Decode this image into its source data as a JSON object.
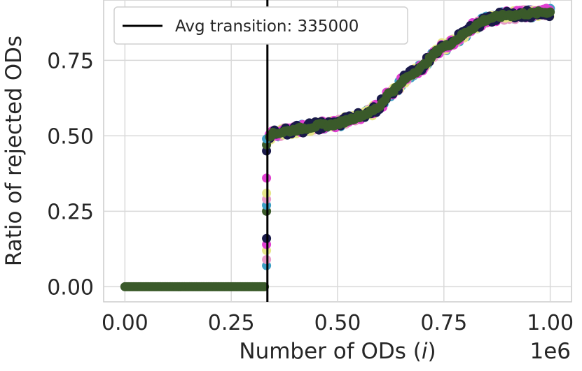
{
  "chart_data": {
    "type": "scatter",
    "xlabel": "Number of ODs (",
    "xlabel_var": "i",
    "xlabel_close": ")",
    "x_multiplier": "1e6",
    "ylabel": "Ratio of rejected ODs",
    "xlim": [
      -50000,
      1050000
    ],
    "ylim": [
      -0.05,
      0.95
    ],
    "x_ticks": [
      0,
      250000,
      500000,
      750000,
      1000000
    ],
    "x_tick_labels": [
      "0.00",
      "0.25",
      "0.50",
      "0.75",
      "1.00"
    ],
    "y_ticks": [
      0.0,
      0.25,
      0.5,
      0.75
    ],
    "y_tick_labels": [
      "0.00",
      "0.25",
      "0.50",
      "0.75"
    ],
    "grid": true,
    "legend_position": "top-left",
    "vline": {
      "x": 335000,
      "label": "Avg transition: 335000",
      "color": "#000000"
    },
    "series_colors": [
      "#3d9ec4",
      "#e89ac8",
      "#e6e68a",
      "#e040d0",
      "#1a1a4a",
      "#3a5a2a"
    ],
    "curve": {
      "x": [
        0,
        100000,
        200000,
        330000,
        331000,
        332000,
        333000,
        334000,
        336000,
        338000,
        345000,
        360000,
        380000,
        400000,
        420000,
        440000,
        460000,
        480000,
        500000,
        520000,
        540000,
        560000,
        580000,
        600000,
        610000,
        620000,
        640000,
        660000,
        680000,
        700000,
        720000,
        740000,
        760000,
        780000,
        800000,
        820000,
        840000,
        860000,
        880000,
        900000,
        920000,
        940000,
        960000,
        980000,
        1000000
      ],
      "y": [
        0.0,
        0.0,
        0.0,
        0.0,
        0.1,
        0.2,
        0.3,
        0.4,
        0.48,
        0.5,
        0.505,
        0.51,
        0.515,
        0.52,
        0.525,
        0.53,
        0.535,
        0.535,
        0.54,
        0.55,
        0.56,
        0.57,
        0.58,
        0.6,
        0.62,
        0.64,
        0.66,
        0.69,
        0.71,
        0.73,
        0.76,
        0.79,
        0.8,
        0.82,
        0.84,
        0.86,
        0.88,
        0.89,
        0.895,
        0.9,
        0.9,
        0.905,
        0.905,
        0.91,
        0.91
      ]
    }
  }
}
